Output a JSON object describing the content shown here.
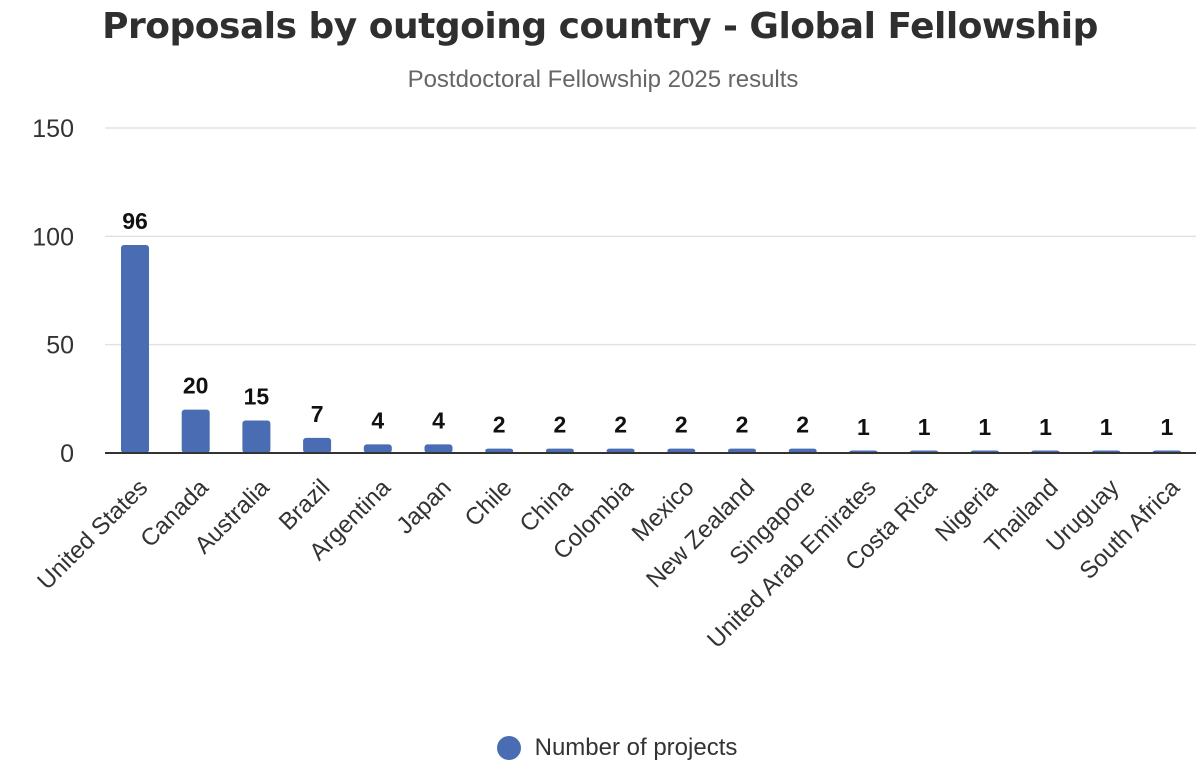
{
  "colors": {
    "bar": "#4a6cb3",
    "grid": "#e2e2e2",
    "axis": "#333333"
  },
  "chart_data": {
    "type": "bar",
    "title": "Proposals by outgoing country - Global Fellowship",
    "subtitle": "Postdoctoral Fellowship 2025 results",
    "xlabel": "",
    "ylabel": "",
    "ylim": [
      0,
      150
    ],
    "yticks": [
      0,
      50,
      100,
      150
    ],
    "grid": true,
    "legend_position": "bottom",
    "categories": [
      "United States",
      "Canada",
      "Australia",
      "Brazil",
      "Argentina",
      "Japan",
      "Chile",
      "China",
      "Colombia",
      "Mexico",
      "New Zealand",
      "Singapore",
      "United Arab Emirates",
      "Costa Rica",
      "Nigeria",
      "Thailand",
      "Uruguay",
      "South Africa"
    ],
    "series": [
      {
        "name": "Number of projects",
        "values": [
          96,
          20,
          15,
          7,
          4,
          4,
          2,
          2,
          2,
          2,
          2,
          2,
          1,
          1,
          1,
          1,
          1,
          1
        ]
      }
    ]
  }
}
